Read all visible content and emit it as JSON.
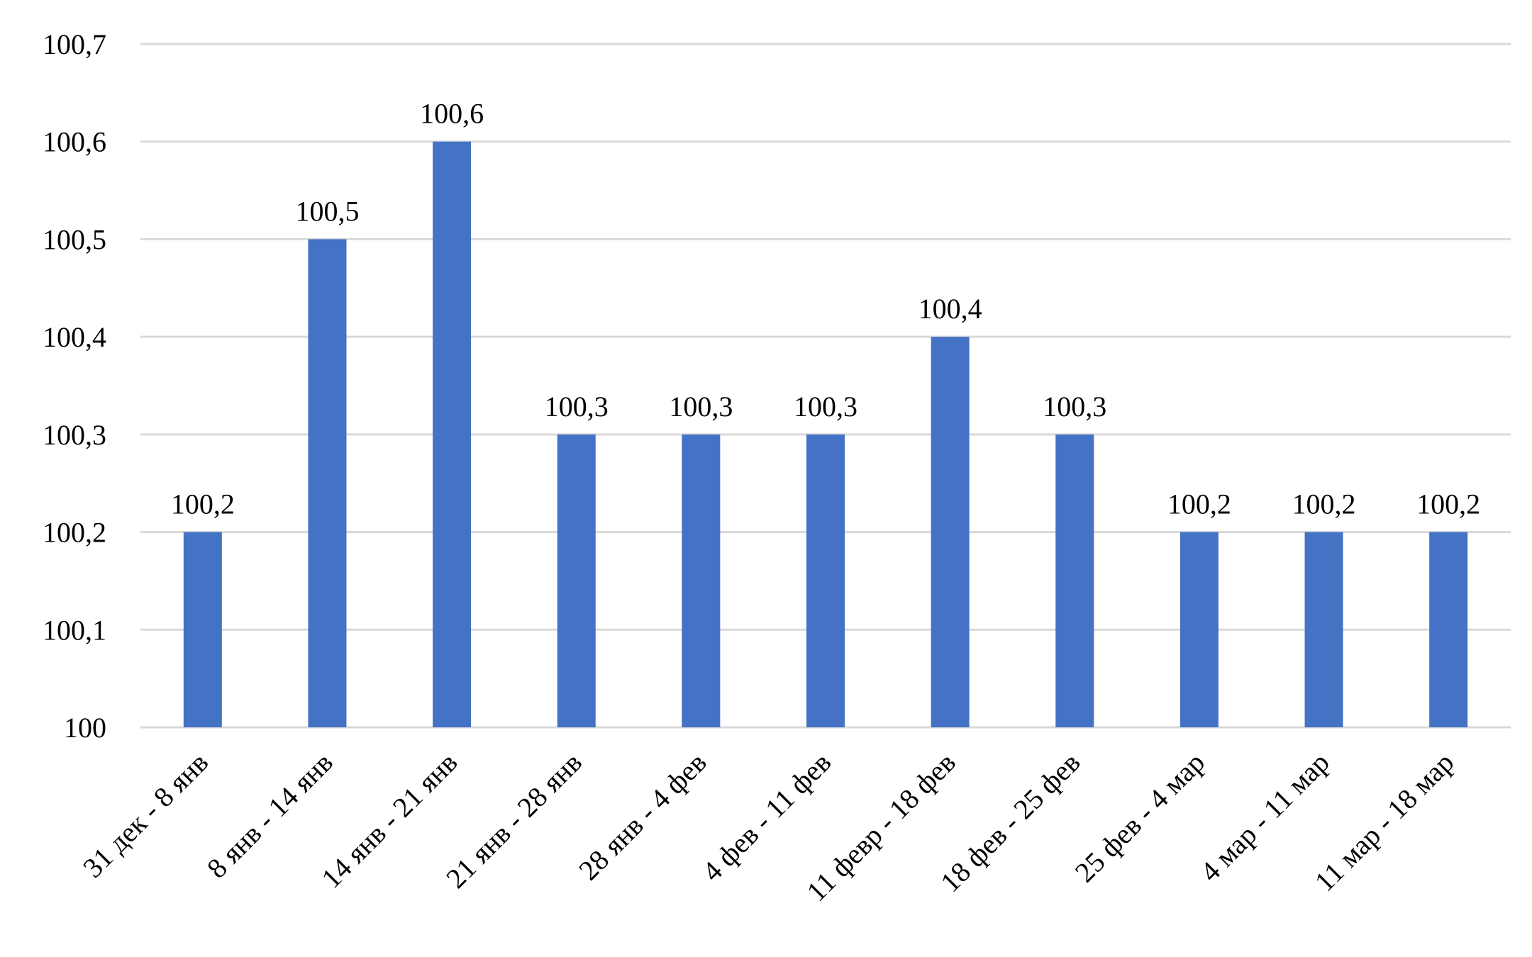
{
  "chart_data": {
    "type": "bar",
    "categories": [
      "31 дек - 8 янв",
      "8 янв - 14 янв",
      "14 янв - 21 янв",
      "21 янв - 28 янв",
      "28 янв - 4 фев",
      "4 фев - 11 фев",
      "11 февр - 18 фев",
      "18 фев - 25 фев",
      "25 фев - 4 мар",
      "4 мар - 11 мар",
      "11 мар - 18 мар"
    ],
    "values": [
      100.2,
      100.5,
      100.6,
      100.3,
      100.3,
      100.3,
      100.4,
      100.3,
      100.2,
      100.2,
      100.2
    ],
    "data_labels": [
      "100,2",
      "100,5",
      "100,6",
      "100,3",
      "100,3",
      "100,3",
      "100,4",
      "100,3",
      "100,2",
      "100,2",
      "100,2"
    ],
    "ylim": [
      100,
      100.7
    ],
    "yticks": [
      100,
      100.1,
      100.2,
      100.3,
      100.4,
      100.5,
      100.6,
      100.7
    ],
    "ytick_labels": [
      "100",
      "100,1",
      "100,2",
      "100,3",
      "100,4",
      "100,5",
      "100,6",
      "100,7"
    ],
    "grid": true,
    "legend": "none",
    "bar_color": "#4472C4",
    "grid_color": "#D9D9D9"
  }
}
